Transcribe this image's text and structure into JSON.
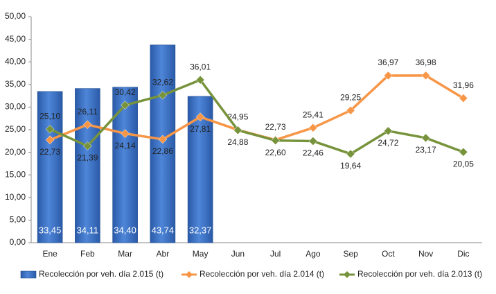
{
  "chart_data": {
    "type": "bar_line",
    "categories": [
      "Ene",
      "Feb",
      "Mar",
      "Abr",
      "May",
      "Jun",
      "Jul",
      "Ago",
      "Sep",
      "Oct",
      "Nov",
      "Dic"
    ],
    "series": [
      {
        "name": "Recolección por veh. día 2.015 (t)",
        "type": "bar",
        "color": "#3b6fc6",
        "values": [
          33.45,
          34.11,
          34.4,
          43.74,
          32.37,
          null,
          null,
          null,
          null,
          null,
          null,
          null
        ],
        "value_labels": [
          "33,45",
          "34,11",
          "34,40",
          "43,74",
          "32,37",
          null,
          null,
          null,
          null,
          null,
          null,
          null
        ]
      },
      {
        "name": "Recolección por veh. día 2.014 (t)",
        "type": "line",
        "color": "#f79646",
        "values": [
          22.73,
          26.11,
          24.14,
          22.86,
          27.81,
          24.95,
          22.73,
          25.41,
          29.25,
          36.97,
          36.98,
          31.96
        ],
        "value_labels": [
          "22,73",
          "26,11",
          "24,14",
          "22,86",
          "27,81",
          "24,95",
          "22,73",
          "25,41",
          "29,25",
          "36,97",
          "36,98",
          "31,96"
        ]
      },
      {
        "name": "Recolección por veh. día 2.013 (t)",
        "type": "line",
        "color": "#77933c",
        "values": [
          25.1,
          21.39,
          30.42,
          32.62,
          36.01,
          24.88,
          22.6,
          22.46,
          19.64,
          24.72,
          23.17,
          20.05
        ],
        "value_labels": [
          "25,10",
          "21,39",
          "30,42",
          "32,62",
          "36,01",
          "24,88",
          "22,60",
          "22,46",
          "19,64",
          "24,72",
          "23,17",
          "20,05"
        ]
      }
    ],
    "ylim": [
      0,
      50
    ],
    "yticks": [
      {
        "value": 0,
        "label": "0,00"
      },
      {
        "value": 5,
        "label": "5,00"
      },
      {
        "value": 10,
        "label": "10,00"
      },
      {
        "value": 15,
        "label": "15,00"
      },
      {
        "value": 20,
        "label": "20,00"
      },
      {
        "value": 25,
        "label": "25,00"
      },
      {
        "value": 30,
        "label": "30,00"
      },
      {
        "value": 35,
        "label": "35,00"
      },
      {
        "value": 40,
        "label": "40,00"
      },
      {
        "value": 45,
        "label": "45,00"
      },
      {
        "value": 50,
        "label": "50,00"
      }
    ],
    "grid": false,
    "legend": "bottom"
  }
}
